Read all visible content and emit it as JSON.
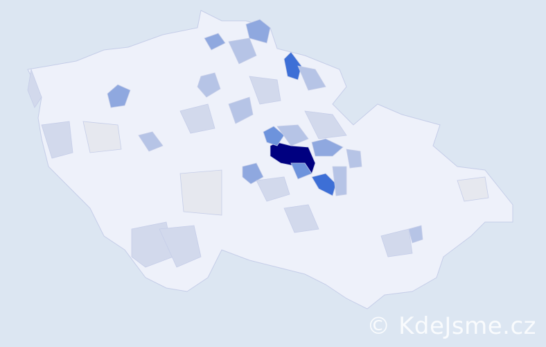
{
  "map": {
    "type": "choropleth",
    "country_fill": "#eef1fa",
    "border_color": "#c5cde8",
    "background": "#dce6f2",
    "scale_colors": [
      "#eef1fa",
      "#d2d9ec",
      "#b6c4e6",
      "#8fa8df",
      "#6d93dc",
      "#3d6fd6",
      "#000080"
    ]
  },
  "watermark": "© KdeJsme.cz"
}
